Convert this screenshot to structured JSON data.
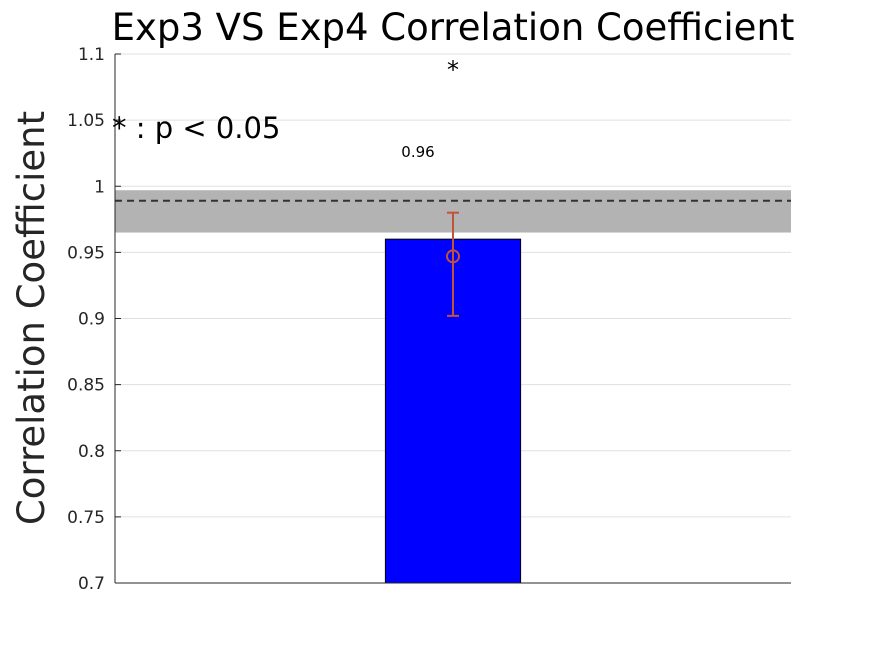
{
  "chart_data": {
    "type": "bar",
    "title": "Exp3 VS Exp4 Correlation Coefficient",
    "xlabel": "",
    "ylabel": "Correlation Coefficient",
    "ylim": [
      0.7,
      1.1
    ],
    "yticks": [
      0.7,
      0.75,
      0.8,
      0.85,
      0.9,
      0.95,
      1,
      1.05,
      1.1
    ],
    "ytick_labels": [
      "0.7",
      "0.75",
      "0.8",
      "0.85",
      "0.9",
      "0.95",
      "1",
      "1.05",
      "1.1"
    ],
    "grid": true,
    "categories": [
      ""
    ],
    "values": [
      0.96
    ],
    "bar_color": "#0000ff",
    "data_label": "0.96",
    "mean_marker": 0.947,
    "error_bar": {
      "low": 0.902,
      "high": 0.98,
      "color": "#c0533a"
    },
    "reference_line": 0.989,
    "reference_band": [
      0.965,
      0.997
    ],
    "band_color": "#b3b3b3",
    "significance_marker": "*",
    "significance_note": "* : p < 0.05"
  }
}
